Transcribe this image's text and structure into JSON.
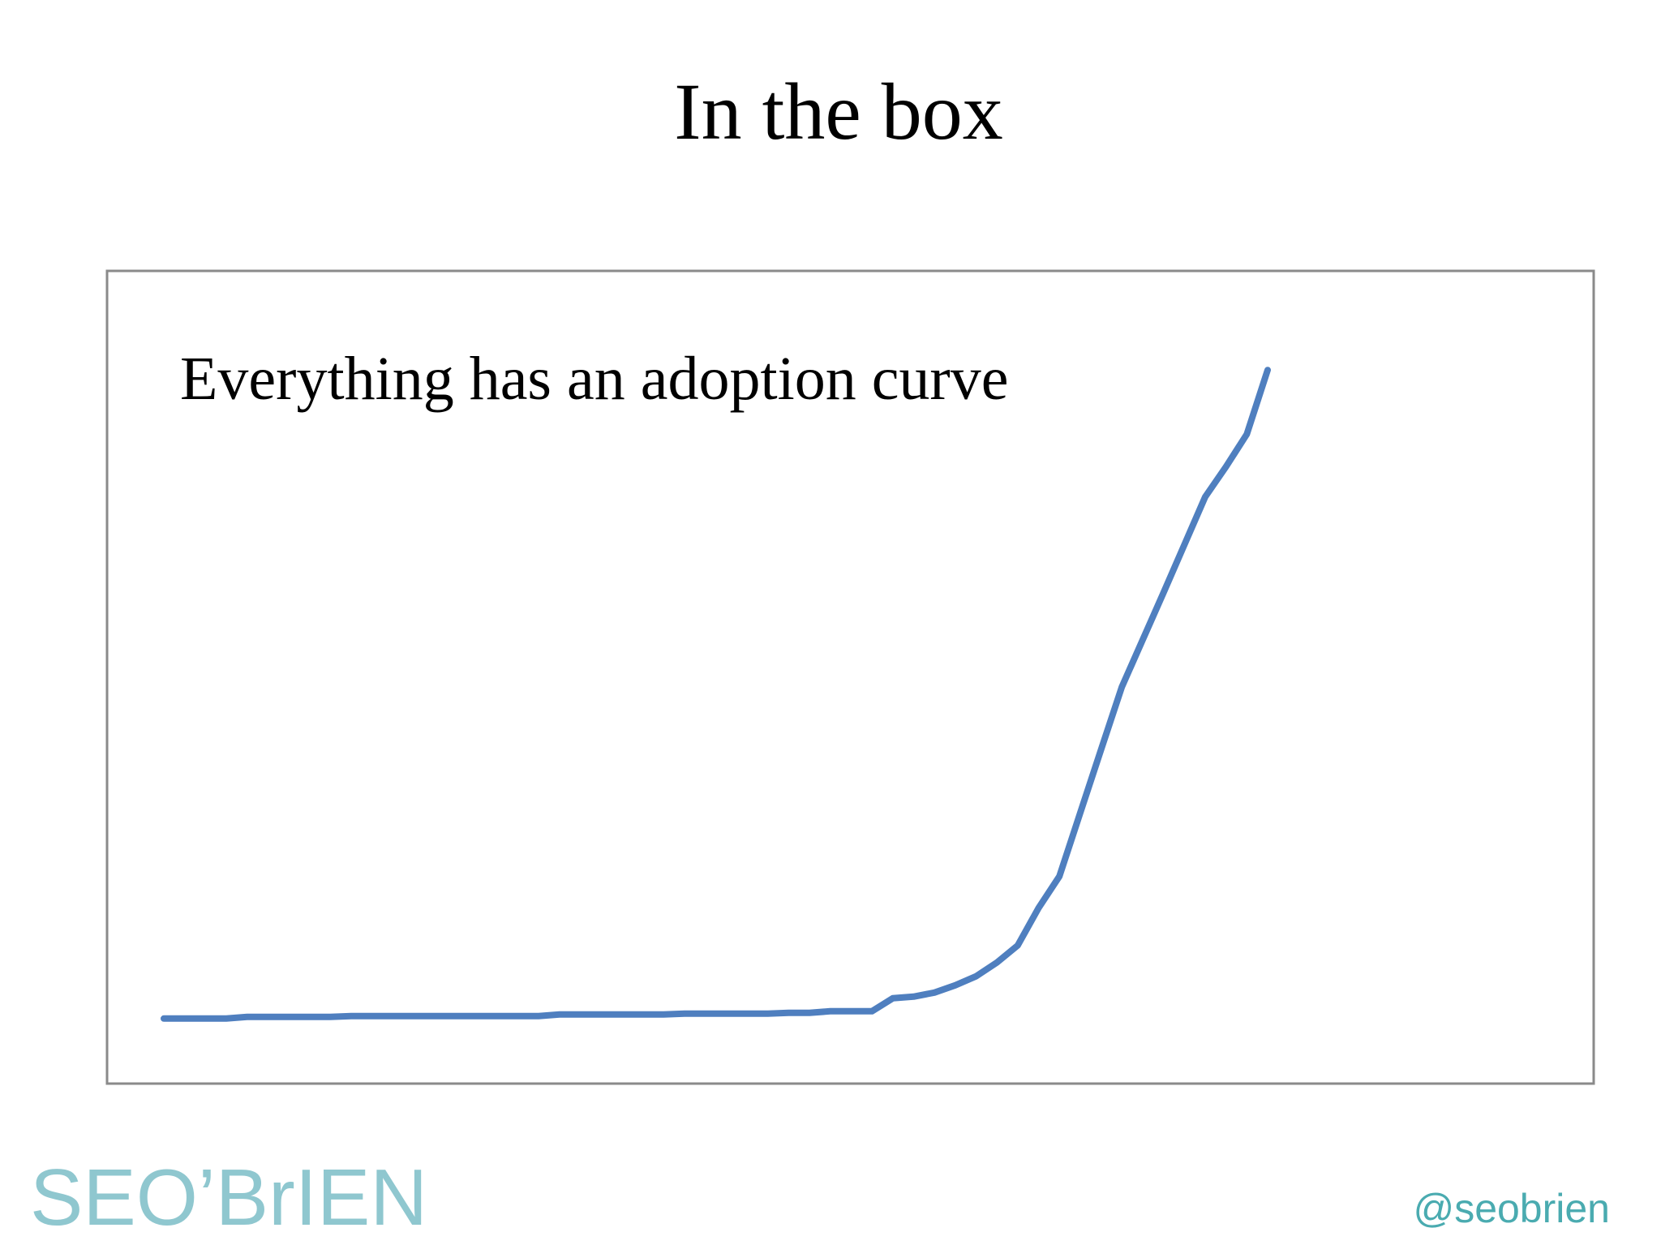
{
  "chart_data": {
    "type": "line",
    "title": "In the box",
    "annotation": "Everything has an adoption curve",
    "categories": [
      null,
      null,
      null,
      null,
      null,
      null,
      null,
      null,
      null,
      null,
      null,
      null,
      null,
      null,
      null,
      null,
      null,
      null,
      null,
      null,
      null,
      null,
      null,
      null,
      null,
      null,
      null,
      null,
      null,
      null,
      null,
      null,
      null,
      null,
      null,
      null,
      null,
      null,
      null,
      null,
      null,
      null,
      null,
      null,
      null,
      null,
      null,
      null,
      null,
      null,
      null,
      null,
      null,
      null
    ],
    "series": [
      {
        "color": "#4f7fbf",
        "values": [
          8.0,
          8.0,
          8.0,
          8.0,
          8.2,
          8.2,
          8.2,
          8.2,
          8.2,
          8.3,
          8.3,
          8.3,
          8.3,
          8.3,
          8.3,
          8.3,
          8.3,
          8.3,
          8.3,
          8.5,
          8.5,
          8.5,
          8.5,
          8.5,
          8.5,
          8.6,
          8.6,
          8.6,
          8.6,
          8.6,
          8.7,
          8.7,
          8.9,
          8.9,
          8.9,
          10.5,
          10.7,
          11.2,
          12.1,
          13.2,
          14.9,
          17.0,
          21.6,
          25.5,
          33.3,
          41.1,
          48.8,
          54.6,
          60.4,
          66.3,
          72.2,
          75.9,
          79.9,
          87.8
        ]
      }
    ],
    "ylim": [
      0,
      100
    ]
  },
  "footer": {
    "logo": "SEO’BrIEN",
    "handle": "@seobrien"
  }
}
